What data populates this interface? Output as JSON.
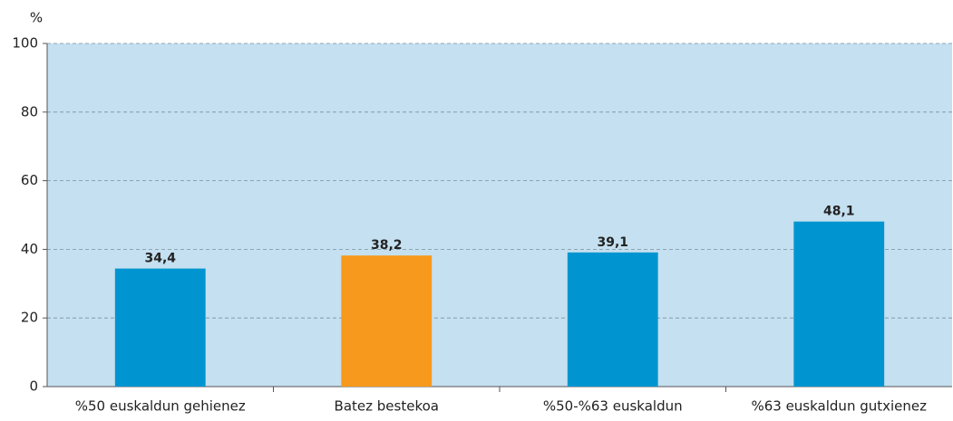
{
  "chart_data": {
    "type": "bar",
    "y_label": "%",
    "categories": [
      "%50 euskaldun gehienez",
      "Batez bestekoa",
      "%50-%63 euskaldun",
      "%63 euskaldun gutxienez"
    ],
    "values": [
      34.4,
      38.2,
      39.1,
      48.1
    ],
    "value_labels": [
      "34,4",
      "38,2",
      "39,1",
      "48,1"
    ],
    "colors": [
      "#0095d0",
      "#f7991c",
      "#0095d0",
      "#0095d0"
    ],
    "ylim": [
      0,
      100
    ],
    "yticks": [
      0,
      20,
      40,
      60,
      80,
      100
    ],
    "grid": true,
    "background": "#c5e0f0"
  }
}
